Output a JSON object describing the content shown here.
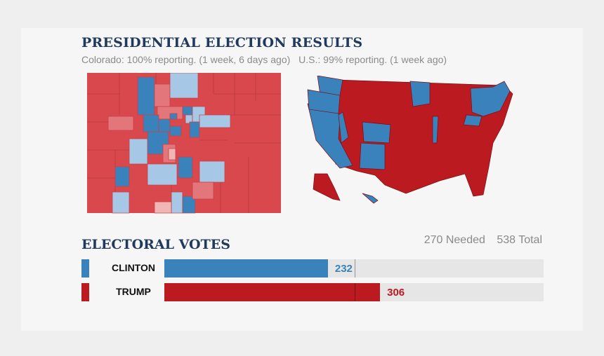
{
  "header": {
    "title": "PRESIDENTIAL ELECTION RESULTS",
    "colorado_status": "Colorado: 100% reporting. (1 week, 6 days ago)",
    "us_status": "U.S.: 99% reporting. (1 week ago)"
  },
  "electoral": {
    "title": "ELECTORAL VOTES",
    "needed_label": "270 Needed",
    "total_label": "538 Total"
  },
  "colors": {
    "dem": "#3a82bb",
    "rep": "#bb1a20",
    "dem_light": "#a6c8e6",
    "rep_light": "#e3767a",
    "rep_map": "#d9484c"
  },
  "chart_data": {
    "type": "bar",
    "title": "ELECTORAL VOTES",
    "total": 538,
    "needed": 270,
    "categories": [
      "CLINTON",
      "TRUMP"
    ],
    "values": [
      232,
      306
    ],
    "colors": [
      "#3a82bb",
      "#bb1a20"
    ]
  }
}
